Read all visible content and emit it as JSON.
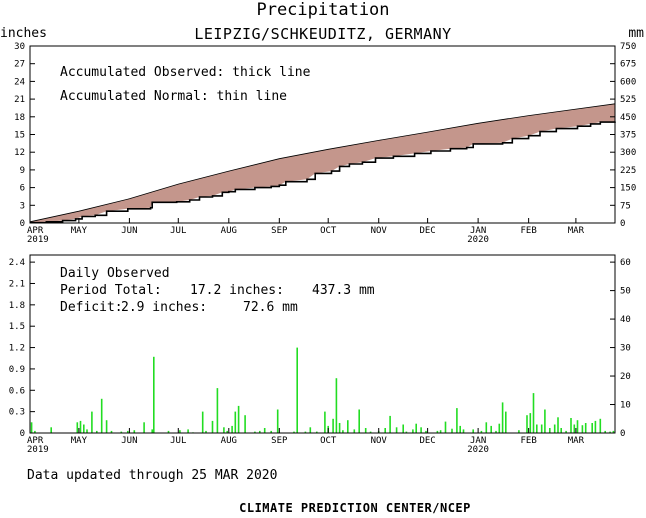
{
  "chart_data": [
    {
      "type": "area",
      "title": "Precipitation",
      "subtitle": "LEIPZIG/SCHKEUDITZ, GERMANY",
      "ylabel_left": "inches",
      "ylabel_right": "mm",
      "ylim": [
        0,
        30
      ],
      "ylim_right": [
        0,
        750
      ],
      "y_ticks": [
        "0",
        "3",
        "6",
        "9",
        "12",
        "15",
        "18",
        "21",
        "24",
        "27",
        "30"
      ],
      "y_ticks_right": [
        "0",
        "75",
        "150",
        "225",
        "300",
        "375",
        "450",
        "525",
        "600",
        "675",
        "750"
      ],
      "x_ticks": [
        {
          "label": "APR",
          "sub": "2019",
          "day": 0
        },
        {
          "label": "MAY",
          "sub": "",
          "day": 30
        },
        {
          "label": "JUN",
          "sub": "",
          "day": 61
        },
        {
          "label": "JUL",
          "sub": "",
          "day": 91
        },
        {
          "label": "AUG",
          "sub": "",
          "day": 122
        },
        {
          "label": "SEP",
          "sub": "",
          "day": 153
        },
        {
          "label": "OCT",
          "sub": "",
          "day": 183
        },
        {
          "label": "NOV",
          "sub": "",
          "day": 214
        },
        {
          "label": "DEC",
          "sub": "",
          "day": 244
        },
        {
          "label": "JAN",
          "sub": "2020",
          "day": 275
        },
        {
          "label": "FEB",
          "sub": "",
          "day": 306
        },
        {
          "label": "MAR",
          "sub": "",
          "day": 335
        }
      ],
      "x_days_total": 359,
      "annotations": [
        "Accumulated Observed: thick line",
        "Accumulated Normal: thin line"
      ],
      "normal": [
        [
          0,
          0.2
        ],
        [
          30,
          2.0
        ],
        [
          61,
          4.1
        ],
        [
          91,
          6.6
        ],
        [
          122,
          8.8
        ],
        [
          153,
          10.9
        ],
        [
          183,
          12.5
        ],
        [
          214,
          14.0
        ],
        [
          244,
          15.4
        ],
        [
          275,
          16.9
        ],
        [
          306,
          18.2
        ],
        [
          335,
          19.3
        ],
        [
          359,
          20.2
        ]
      ],
      "observed": [
        [
          0,
          0.05
        ],
        [
          10,
          0.2
        ],
        [
          20,
          0.4
        ],
        [
          28,
          0.7
        ],
        [
          32,
          1.1
        ],
        [
          40,
          1.3
        ],
        [
          47,
          2.0
        ],
        [
          60,
          2.4
        ],
        [
          74,
          2.6
        ],
        [
          75,
          3.5
        ],
        [
          90,
          3.6
        ],
        [
          98,
          3.9
        ],
        [
          104,
          4.4
        ],
        [
          112,
          4.6
        ],
        [
          118,
          5.2
        ],
        [
          122,
          5.3
        ],
        [
          126,
          5.7
        ],
        [
          138,
          6.0
        ],
        [
          148,
          6.2
        ],
        [
          153,
          6.4
        ],
        [
          157,
          7.0
        ],
        [
          170,
          7.4
        ],
        [
          175,
          8.4
        ],
        [
          185,
          8.8
        ],
        [
          190,
          9.6
        ],
        [
          196,
          10.0
        ],
        [
          204,
          10.3
        ],
        [
          212,
          11.0
        ],
        [
          223,
          11.3
        ],
        [
          236,
          11.8
        ],
        [
          246,
          12.2
        ],
        [
          258,
          12.6
        ],
        [
          268,
          12.8
        ],
        [
          272,
          13.4
        ],
        [
          290,
          13.6
        ],
        [
          296,
          14.3
        ],
        [
          306,
          14.8
        ],
        [
          313,
          15.5
        ],
        [
          323,
          16.0
        ],
        [
          336,
          16.4
        ],
        [
          344,
          16.8
        ],
        [
          350,
          17.1
        ],
        [
          359,
          17.2
        ]
      ]
    },
    {
      "type": "bar",
      "title": "Daily Observed",
      "ylim": [
        0,
        2.5
      ],
      "ylim_right": [
        0,
        62.5
      ],
      "y_ticks": [
        "0",
        "0.3",
        "0.6",
        "0.9",
        "1.2",
        "1.5",
        "1.8",
        "2.1",
        "2.4"
      ],
      "y_ticks_right": [
        "0",
        "10",
        "20",
        "30",
        "40",
        "50",
        "60"
      ],
      "period_total_label": "Period Total:",
      "period_total_in": "17.2 inches:",
      "period_total_mm": "437.3 mm",
      "deficit_label": "Deficit:",
      "deficit_in": "2.9 inches:",
      "deficit_mm": "72.6 mm",
      "bars": [
        [
          1,
          0.15
        ],
        [
          3,
          0.03
        ],
        [
          13,
          0.08
        ],
        [
          29,
          0.15
        ],
        [
          31,
          0.17
        ],
        [
          33,
          0.12
        ],
        [
          35,
          0.05
        ],
        [
          38,
          0.3
        ],
        [
          41,
          0.03
        ],
        [
          44,
          0.48
        ],
        [
          47,
          0.18
        ],
        [
          50,
          0.03
        ],
        [
          56,
          0.02
        ],
        [
          60,
          0.03
        ],
        [
          64,
          0.04
        ],
        [
          70,
          0.15
        ],
        [
          75,
          0.05
        ],
        [
          76,
          1.07
        ],
        [
          85,
          0.03
        ],
        [
          92,
          0.04
        ],
        [
          97,
          0.05
        ],
        [
          100,
          0.01
        ],
        [
          106,
          0.3
        ],
        [
          108,
          0.03
        ],
        [
          112,
          0.17
        ],
        [
          115,
          0.63
        ],
        [
          119,
          0.08
        ],
        [
          121,
          0.03
        ],
        [
          124,
          0.1
        ],
        [
          126,
          0.3
        ],
        [
          128,
          0.38
        ],
        [
          132,
          0.25
        ],
        [
          138,
          0.02
        ],
        [
          141,
          0.03
        ],
        [
          144,
          0.07
        ],
        [
          148,
          0.03
        ],
        [
          152,
          0.33
        ],
        [
          162,
          0.02
        ],
        [
          164,
          1.2
        ],
        [
          169,
          0.02
        ],
        [
          172,
          0.08
        ],
        [
          176,
          0.02
        ],
        [
          181,
          0.3
        ],
        [
          183,
          0.1
        ],
        [
          186,
          0.2
        ],
        [
          188,
          0.77
        ],
        [
          190,
          0.14
        ],
        [
          192,
          0.04
        ],
        [
          195,
          0.18
        ],
        [
          199,
          0.05
        ],
        [
          202,
          0.33
        ],
        [
          206,
          0.07
        ],
        [
          209,
          0.02
        ],
        [
          214,
          0.03
        ],
        [
          218,
          0.07
        ],
        [
          221,
          0.24
        ],
        [
          225,
          0.08
        ],
        [
          229,
          0.12
        ],
        [
          231,
          0.02
        ],
        [
          235,
          0.05
        ],
        [
          237,
          0.13
        ],
        [
          240,
          0.08
        ],
        [
          243,
          0.03
        ],
        [
          250,
          0.03
        ],
        [
          252,
          0.04
        ],
        [
          255,
          0.16
        ],
        [
          259,
          0.06
        ],
        [
          262,
          0.35
        ],
        [
          264,
          0.1
        ],
        [
          266,
          0.05
        ],
        [
          272,
          0.05
        ],
        [
          277,
          0.03
        ],
        [
          280,
          0.15
        ],
        [
          283,
          0.1
        ],
        [
          286,
          0.03
        ],
        [
          288,
          0.13
        ],
        [
          290,
          0.43
        ],
        [
          292,
          0.3
        ],
        [
          300,
          0.04
        ],
        [
          305,
          0.25
        ],
        [
          307,
          0.28
        ],
        [
          309,
          0.56
        ],
        [
          311,
          0.12
        ],
        [
          314,
          0.12
        ],
        [
          316,
          0.33
        ],
        [
          319,
          0.07
        ],
        [
          322,
          0.12
        ],
        [
          324,
          0.22
        ],
        [
          326,
          0.07
        ],
        [
          329,
          0.03
        ],
        [
          332,
          0.21
        ],
        [
          334,
          0.12
        ],
        [
          336,
          0.18
        ],
        [
          339,
          0.11
        ],
        [
          341,
          0.14
        ],
        [
          345,
          0.14
        ],
        [
          347,
          0.17
        ],
        [
          350,
          0.2
        ],
        [
          353,
          0.03
        ],
        [
          356,
          0.02
        ],
        [
          358,
          0.03
        ]
      ]
    }
  ],
  "footer": {
    "updated": "Data updated through 25 MAR 2020",
    "source": "CLIMATE PREDICTION CENTER/NCEP"
  },
  "colors": {
    "fill": "#c4968c",
    "bar": "#22dd22",
    "axis": "#000000"
  }
}
